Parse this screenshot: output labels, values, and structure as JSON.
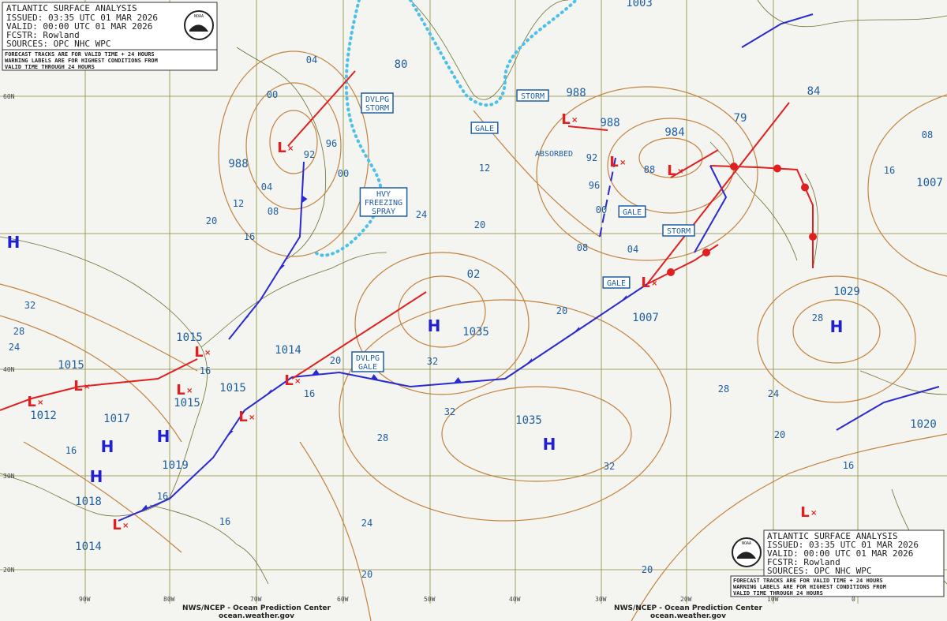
{
  "header": {
    "title": "ATLANTIC SURFACE ANALYSIS",
    "issued": "ISSUED: 03:35 UTC 01 MAR 2026",
    "valid": "VALID:  00:00 UTC 01 MAR 2026",
    "forecaster": "FCSTR: Rowland",
    "sources": "SOURCES: OPC NHC WPC",
    "logo": "NOAA",
    "note": [
      "FORECAST TRACKS ARE FOR VALID TIME + 24 HOURS",
      "WARNING LABELS ARE FOR HIGHEST CONDITIONS FROM",
      "VALID TIME THROUGH 24 HOURS"
    ]
  },
  "footer": {
    "center": "NWS/NCEP - Ocean Prediction Center",
    "website": "ocean.weather.gov"
  },
  "symbols": {
    "high": "H",
    "low": "L"
  },
  "latitudes": [
    "60N",
    "40N",
    "30N",
    "20N"
  ],
  "longitudes": [
    "90W",
    "80W",
    "70W",
    "60W",
    "50W",
    "40W",
    "30W",
    "20W",
    "10W",
    "0"
  ],
  "pressure_centers": [
    "1003",
    "988",
    "988",
    "988",
    "984",
    "1015",
    "1015",
    "1014",
    "1012",
    "1017",
    "1015",
    "1015",
    "1019",
    "1018",
    "1014",
    "1035",
    "1035",
    "1007",
    "1029",
    "1020",
    "1007",
    "02",
    "80",
    "79",
    "84"
  ],
  "isobar_labels": [
    "04",
    "00",
    "92",
    "96",
    "00",
    "04",
    "08",
    "12",
    "16",
    "20",
    "32",
    "28",
    "24",
    "16",
    "16",
    "20",
    "24",
    "20",
    "12",
    "32",
    "32",
    "28",
    "24",
    "20",
    "16",
    "16",
    "16",
    "92",
    "96",
    "00",
    "88",
    "08",
    "04",
    "20",
    "28",
    "24",
    "20",
    "16",
    "16",
    "08",
    "28",
    "32",
    "20"
  ],
  "warnings": [
    {
      "lines": [
        "DVLPG",
        "STORM"
      ]
    },
    {
      "lines": [
        "HVY",
        "FREEZING",
        "SPRAY"
      ]
    },
    {
      "lines": [
        "GALE"
      ]
    },
    {
      "lines": [
        "STORM"
      ]
    },
    {
      "lines": [
        "GALE"
      ]
    },
    {
      "lines": [
        "STORM"
      ]
    },
    {
      "lines": [
        "GALE"
      ]
    },
    {
      "lines": [
        "DVLPG",
        "GALE"
      ]
    }
  ],
  "annotations": [
    "ABSORBED"
  ]
}
